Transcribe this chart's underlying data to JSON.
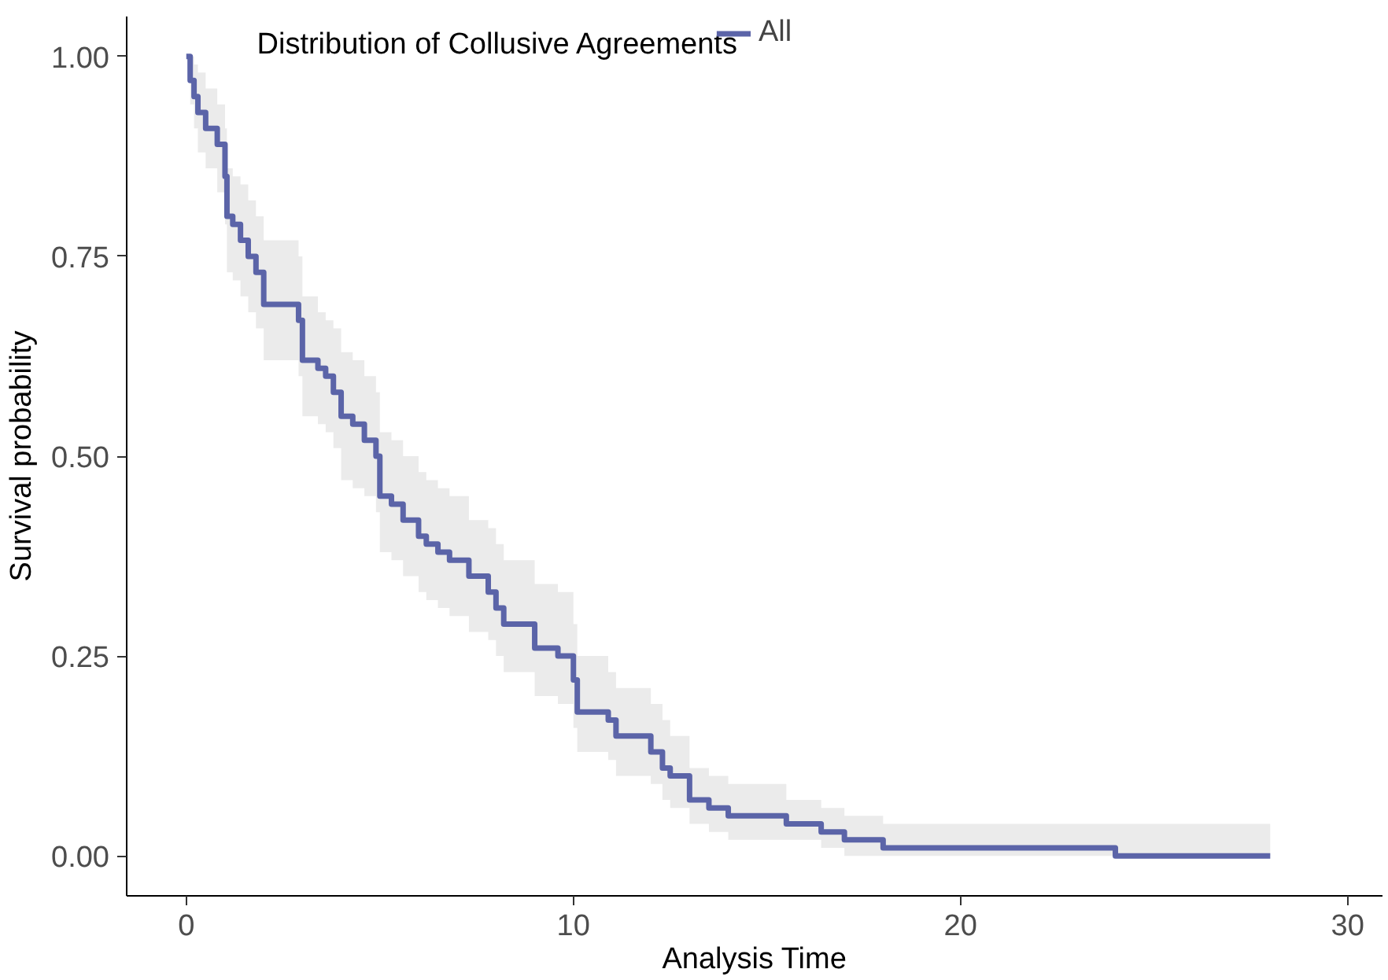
{
  "chart_data": {
    "type": "step",
    "xlabel": "Analysis Time",
    "ylabel": "Survival probability",
    "legend_title": "Distribution of Collusive Agreements",
    "legend": "top",
    "grid": false,
    "marker": "none",
    "line_style": "solid",
    "xlim": [
      -1.54,
      30.9
    ],
    "ylim": [
      -0.05,
      1.05
    ],
    "xticks": [
      0,
      10,
      20,
      30
    ],
    "yticks": [
      {
        "value": 0,
        "label": "0.00"
      },
      {
        "value": 0.25,
        "label": "0.25"
      },
      {
        "value": 0.5,
        "label": "0.50"
      },
      {
        "value": 0.75,
        "label": "0.75"
      },
      {
        "value": 1,
        "label": "1.00"
      }
    ],
    "series": [
      {
        "name": "All",
        "color": "#5b64a8",
        "x": [
          0,
          0.1,
          0.2,
          0.3,
          0.5,
          0.8,
          1.0,
          1.05,
          1.2,
          1.4,
          1.6,
          1.8,
          2.0,
          2.9,
          3.0,
          3.4,
          3.6,
          3.8,
          4.0,
          4.3,
          4.6,
          4.9,
          5.0,
          5.3,
          5.6,
          6.0,
          6.2,
          6.5,
          6.8,
          7.3,
          7.8,
          8.0,
          8.2,
          9.0,
          9.6,
          10.0,
          10.1,
          10.9,
          11.1,
          12.0,
          12.3,
          12.5,
          13.0,
          13.5,
          14.0,
          15.5,
          16.4,
          17.0,
          18.0,
          24.0,
          28.0
        ],
        "values": [
          1.0,
          0.97,
          0.95,
          0.93,
          0.91,
          0.89,
          0.85,
          0.8,
          0.79,
          0.77,
          0.75,
          0.73,
          0.69,
          0.67,
          0.62,
          0.61,
          0.6,
          0.58,
          0.55,
          0.54,
          0.52,
          0.5,
          0.45,
          0.44,
          0.42,
          0.4,
          0.39,
          0.38,
          0.37,
          0.35,
          0.33,
          0.31,
          0.29,
          0.26,
          0.25,
          0.22,
          0.18,
          0.17,
          0.15,
          0.13,
          0.11,
          0.1,
          0.07,
          0.06,
          0.05,
          0.04,
          0.03,
          0.02,
          0.01,
          0.0,
          0.0
        ],
        "lower": [
          1.0,
          0.94,
          0.91,
          0.88,
          0.86,
          0.83,
          0.79,
          0.73,
          0.72,
          0.7,
          0.68,
          0.66,
          0.62,
          0.6,
          0.55,
          0.54,
          0.53,
          0.51,
          0.47,
          0.46,
          0.45,
          0.43,
          0.38,
          0.37,
          0.35,
          0.33,
          0.32,
          0.31,
          0.3,
          0.28,
          0.27,
          0.25,
          0.23,
          0.2,
          0.19,
          0.16,
          0.13,
          0.12,
          0.1,
          0.09,
          0.07,
          0.06,
          0.04,
          0.03,
          0.02,
          0.02,
          0.01,
          0.0,
          0.0,
          0.0,
          0.0
        ],
        "upper": [
          1.0,
          1.0,
          0.99,
          0.98,
          0.96,
          0.94,
          0.91,
          0.86,
          0.85,
          0.84,
          0.82,
          0.8,
          0.77,
          0.75,
          0.7,
          0.68,
          0.67,
          0.66,
          0.63,
          0.62,
          0.6,
          0.58,
          0.53,
          0.52,
          0.5,
          0.48,
          0.47,
          0.46,
          0.45,
          0.42,
          0.41,
          0.39,
          0.37,
          0.34,
          0.33,
          0.29,
          0.25,
          0.23,
          0.21,
          0.19,
          0.17,
          0.15,
          0.11,
          0.1,
          0.09,
          0.07,
          0.06,
          0.05,
          0.04,
          0.04,
          0.04
        ]
      }
    ]
  }
}
